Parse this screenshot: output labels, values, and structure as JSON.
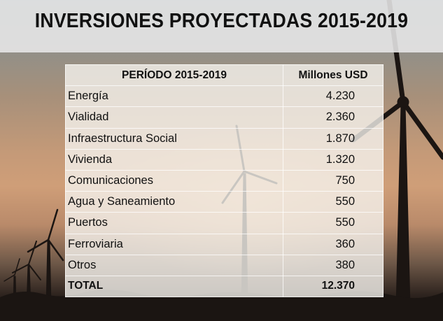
{
  "slide": {
    "title": "INVERSIONES PROYECTADAS 2015-2019"
  },
  "table": {
    "headers": [
      "PERÍODO 2015-2019",
      "Millones USD"
    ],
    "rows": [
      {
        "label": "Energía",
        "value": "4.230"
      },
      {
        "label": "Vialidad",
        "value": "2.360"
      },
      {
        "label": "Infraestructura Social",
        "value": "1.870"
      },
      {
        "label": "Vivienda",
        "value": "1.320"
      },
      {
        "label": "Comunicaciones",
        "value": "750"
      },
      {
        "label": "Agua y Saneamiento",
        "value": "550"
      },
      {
        "label": "Puertos",
        "value": "550"
      },
      {
        "label": "Ferroviaria",
        "value": "360"
      },
      {
        "label": "Otros",
        "value": "380"
      }
    ],
    "total": {
      "label": "TOTAL",
      "value": "12.370"
    }
  },
  "background": {
    "scene": "wind-turbines-sunset",
    "colors": {
      "sky_top": "#7f8a90",
      "sky_glow": "#cf9e78",
      "ground": "#140f0d"
    }
  }
}
